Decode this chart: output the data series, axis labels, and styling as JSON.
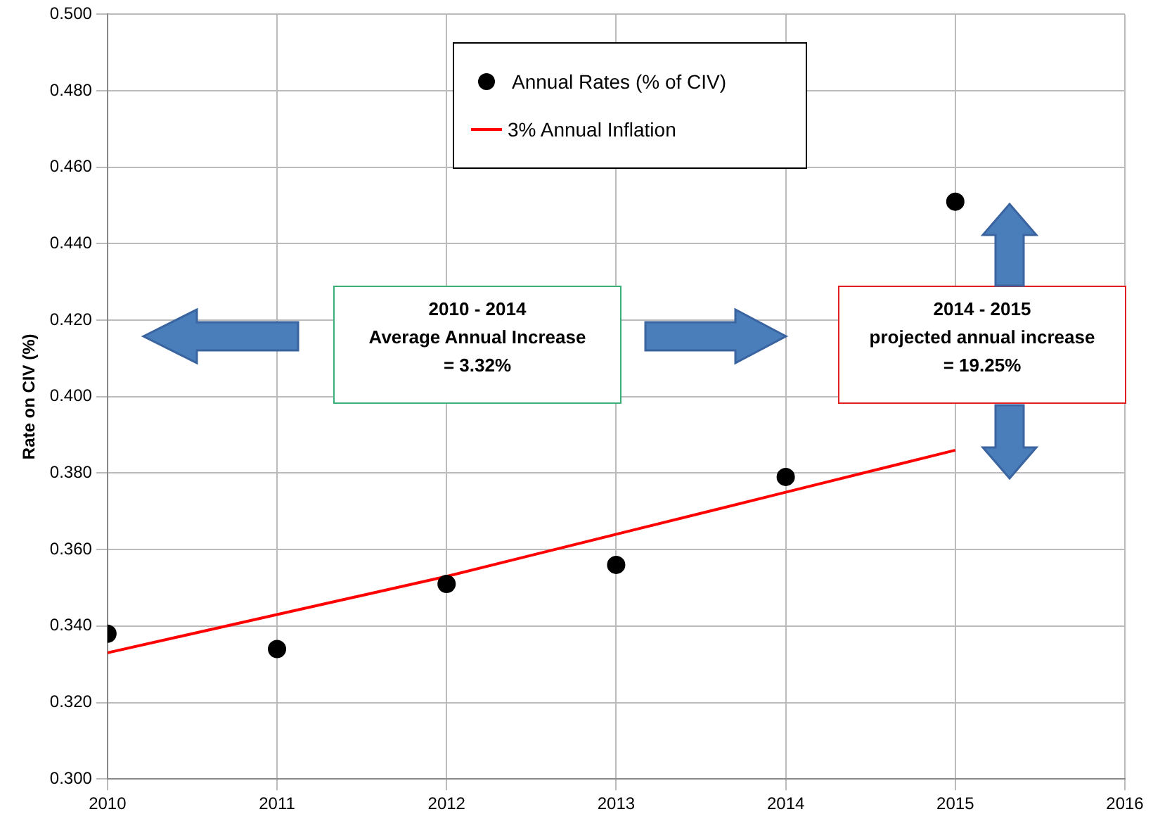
{
  "chart_data": {
    "type": "scatter",
    "ylabel": "Rate on CIV (%)",
    "xlim": [
      2010,
      2016
    ],
    "xticks": [
      2010,
      2011,
      2012,
      2013,
      2014,
      2015,
      2016
    ],
    "ylim": [
      0.3,
      0.5
    ],
    "yticks": [
      {
        "value": 0.3,
        "label": "0.300"
      },
      {
        "value": 0.32,
        "label": "0.320"
      },
      {
        "value": 0.34,
        "label": "0.340"
      },
      {
        "value": 0.36,
        "label": "0.360"
      },
      {
        "value": 0.38,
        "label": "0.380"
      },
      {
        "value": 0.4,
        "label": "0.400"
      },
      {
        "value": 0.42,
        "label": "0.420"
      },
      {
        "value": 0.44,
        "label": "0.440"
      },
      {
        "value": 0.46,
        "label": "0.460"
      },
      {
        "value": 0.48,
        "label": "0.480"
      },
      {
        "value": 0.5,
        "label": "0.500"
      }
    ],
    "grid": true,
    "legend": "top",
    "series": [
      {
        "name": "Annual Rates (% of CIV)",
        "marker": "circle",
        "color": "#000000",
        "x": [
          2010,
          2011,
          2012,
          2013,
          2014,
          2015
        ],
        "values": [
          0.338,
          0.334,
          0.351,
          0.356,
          0.379,
          0.451
        ]
      },
      {
        "name": "3% Annual Inflation",
        "type": "line",
        "marker": "none",
        "color": "#ff0000",
        "x": [
          2010,
          2011,
          2012,
          2013,
          2014,
          2015
        ],
        "values": [
          0.333,
          0.343,
          0.353,
          0.364,
          0.375,
          0.386
        ]
      }
    ],
    "annotations": [
      "2010 - 2014\nAverage Annual Increase\n= 3.32%",
      "2014 - 2015\nprojected annual increase\n= 19.25%"
    ]
  }
}
